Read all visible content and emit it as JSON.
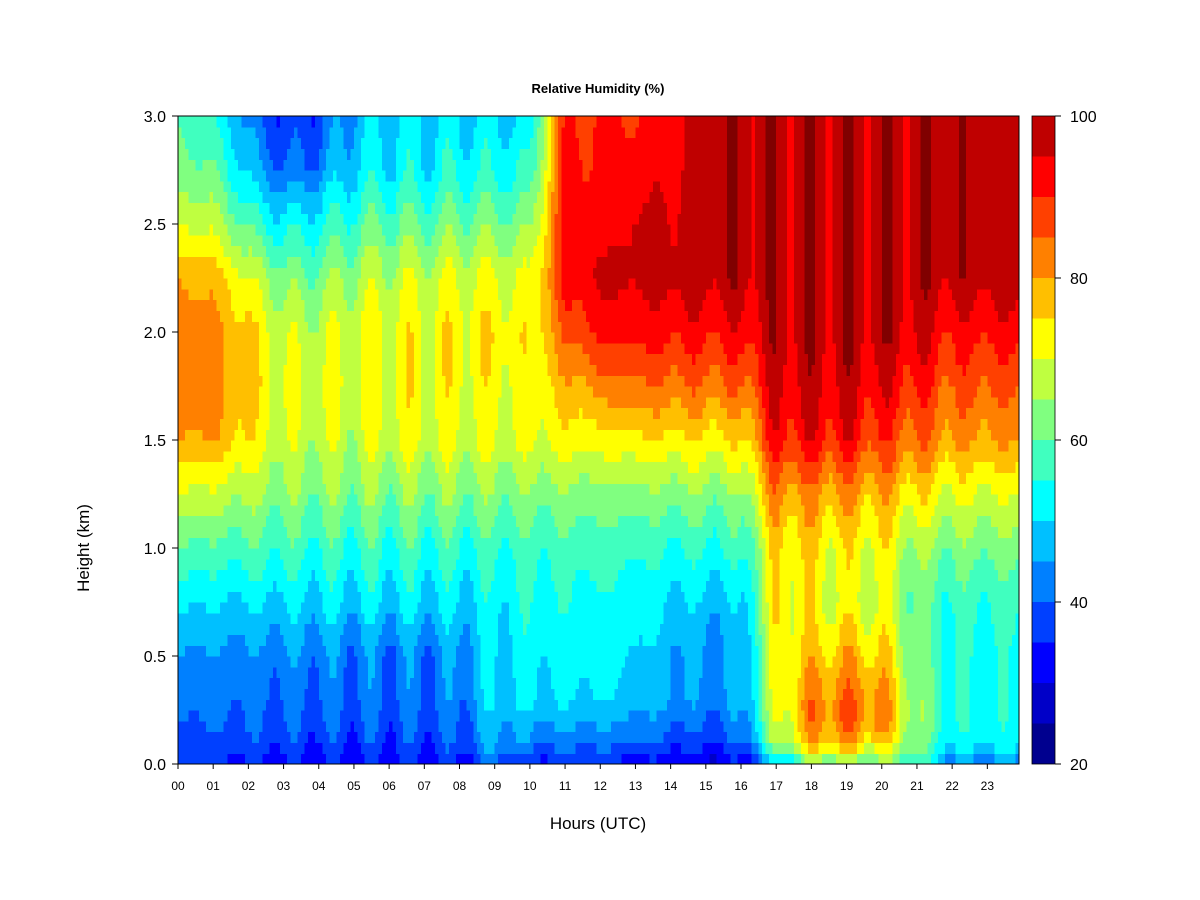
{
  "chart_data": {
    "type": "heatmap",
    "title": "Relative Humidity (%)",
    "xlabel": "Hours (UTC)",
    "ylabel": "Height (km)",
    "x_ticks": [
      "00",
      "01",
      "02",
      "03",
      "04",
      "05",
      "06",
      "07",
      "08",
      "09",
      "10",
      "11",
      "12",
      "13",
      "14",
      "15",
      "16",
      "17",
      "18",
      "19",
      "20",
      "21",
      "22",
      "23"
    ],
    "xlim": [
      0,
      23.9
    ],
    "ylim": [
      0,
      3.0
    ],
    "y_ticks": [
      "0.0",
      "0.5",
      "1.0",
      "1.5",
      "2.0",
      "2.5",
      "3.0"
    ],
    "y_tick_values": [
      0,
      0.5,
      1.0,
      1.5,
      2.0,
      2.5,
      3.0
    ],
    "colorbar": {
      "range": [
        20,
        100
      ],
      "step": 5,
      "ticks": [
        "20",
        "40",
        "60",
        "80",
        "100"
      ],
      "tick_values": [
        20,
        40,
        60,
        80,
        100
      ],
      "colors": [
        "#00008f",
        "#0000c8",
        "#0000ff",
        "#0040ff",
        "#0080ff",
        "#00c0ff",
        "#00ffff",
        "#40ffbf",
        "#80ff80",
        "#bfff40",
        "#ffff00",
        "#ffbf00",
        "#ff8000",
        "#ff4000",
        "#ff0000",
        "#bf0000",
        "#800000"
      ]
    },
    "heights_km": [
      0.0,
      0.05,
      0.1,
      0.2,
      0.3,
      0.5,
      0.75,
      1.0,
      1.25,
      1.5,
      1.75,
      2.0,
      2.25,
      2.5,
      2.75,
      3.0
    ],
    "hours": [
      0,
      1,
      2,
      3,
      4,
      5,
      6,
      7,
      8,
      9,
      10,
      11,
      12,
      13,
      14,
      15,
      16,
      17,
      18,
      19,
      20,
      21,
      22,
      23
    ],
    "values": [
      [
        35,
        37,
        38,
        40,
        42,
        45,
        52,
        60,
        70,
        80,
        83,
        83,
        80,
        70,
        62,
        60
      ],
      [
        35,
        37,
        38,
        40,
        42,
        44,
        50,
        58,
        68,
        80,
        82,
        82,
        78,
        68,
        60,
        55
      ],
      [
        34,
        36,
        38,
        40,
        41,
        43,
        50,
        58,
        66,
        74,
        76,
        76,
        70,
        58,
        48,
        43
      ],
      [
        33,
        35,
        37,
        39,
        41,
        43,
        50,
        57,
        63,
        68,
        70,
        68,
        62,
        52,
        40,
        35
      ],
      [
        33,
        35,
        37,
        39,
        41,
        43,
        50,
        56,
        63,
        68,
        70,
        68,
        62,
        54,
        43,
        38
      ],
      [
        33,
        35,
        37,
        39,
        41,
        42,
        50,
        56,
        63,
        68,
        70,
        70,
        66,
        58,
        50,
        47
      ],
      [
        33,
        35,
        37,
        39,
        41,
        42,
        50,
        56,
        63,
        70,
        72,
        72,
        68,
        60,
        52,
        50
      ],
      [
        33,
        35,
        37,
        39,
        41,
        42,
        50,
        56,
        63,
        70,
        72,
        72,
        68,
        60,
        52,
        50
      ],
      [
        33,
        36,
        38,
        40,
        42,
        44,
        50,
        56,
        63,
        70,
        72,
        73,
        70,
        62,
        54,
        50
      ],
      [
        40,
        44,
        46,
        48,
        50,
        50,
        52,
        56,
        63,
        70,
        72,
        74,
        70,
        62,
        54,
        50
      ],
      [
        35,
        38,
        42,
        46,
        50,
        52,
        54,
        57,
        63,
        70,
        72,
        73,
        70,
        63,
        55,
        50
      ],
      [
        35,
        38,
        42,
        46,
        50,
        52,
        54,
        57,
        63,
        72,
        78,
        85,
        92,
        92,
        92,
        90
      ],
      [
        35,
        38,
        42,
        46,
        50,
        52,
        54,
        57,
        63,
        72,
        82,
        92,
        96,
        92,
        90,
        90
      ],
      [
        33,
        36,
        40,
        44,
        48,
        50,
        53,
        56,
        63,
        74,
        84,
        92,
        96,
        96,
        92,
        90
      ],
      [
        32,
        35,
        38,
        42,
        46,
        46,
        50,
        55,
        63,
        74,
        84,
        92,
        97,
        96,
        94,
        92
      ],
      [
        30,
        33,
        36,
        40,
        43,
        44,
        48,
        55,
        63,
        74,
        84,
        92,
        98,
        98,
        98,
        98
      ],
      [
        32,
        35,
        38,
        42,
        45,
        45,
        48,
        55,
        63,
        74,
        84,
        92,
        98,
        98,
        98,
        98
      ],
      [
        45,
        55,
        65,
        68,
        70,
        72,
        74,
        75,
        82,
        92,
        96,
        98,
        98,
        98,
        98,
        98
      ],
      [
        62,
        70,
        78,
        82,
        82,
        76,
        72,
        74,
        80,
        92,
        96,
        98,
        98,
        98,
        98,
        98
      ],
      [
        62,
        70,
        78,
        84,
        84,
        78,
        70,
        72,
        80,
        92,
        96,
        98,
        98,
        98,
        98,
        98
      ],
      [
        60,
        68,
        76,
        82,
        82,
        76,
        70,
        72,
        78,
        88,
        94,
        98,
        98,
        98,
        98,
        98
      ],
      [
        55,
        60,
        62,
        64,
        64,
        62,
        60,
        65,
        74,
        84,
        90,
        96,
        98,
        98,
        98,
        98
      ],
      [
        42,
        48,
        52,
        54,
        54,
        54,
        56,
        62,
        70,
        80,
        86,
        92,
        98,
        98,
        98,
        98
      ],
      [
        42,
        48,
        52,
        54,
        54,
        54,
        56,
        62,
        70,
        80,
        86,
        92,
        98,
        98,
        98,
        98
      ]
    ]
  }
}
